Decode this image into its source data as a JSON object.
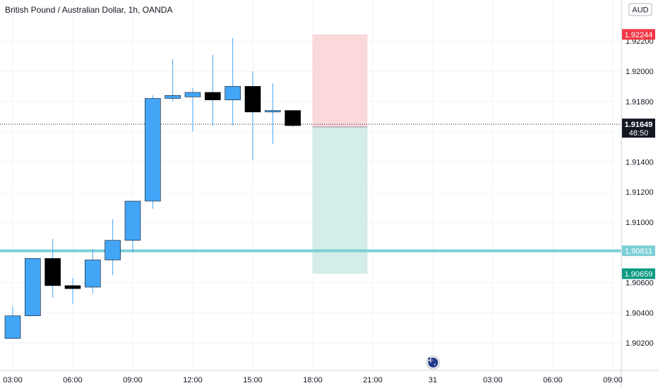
{
  "chart_data": {
    "type": "candlestick",
    "title": "British Pound / Australian Dollar, 1h, OANDA",
    "currency": "AUD",
    "ylim": [
      1.9,
      1.9252
    ],
    "y_ticks": [
      "1.90200",
      "1.90400",
      "1.90600",
      "1.90800",
      "1.91000",
      "1.91200",
      "1.91400",
      "1.91600",
      "1.91800",
      "1.92000",
      "1.92200"
    ],
    "x_ticks": [
      {
        "label": "03:00",
        "hour": 0
      },
      {
        "label": "06:00",
        "hour": 3
      },
      {
        "label": "09:00",
        "hour": 6
      },
      {
        "label": "12:00",
        "hour": 9
      },
      {
        "label": "15:00",
        "hour": 12
      },
      {
        "label": "18:00",
        "hour": 15
      },
      {
        "label": "21:00",
        "hour": 18
      },
      {
        "label": "31",
        "hour": 21
      },
      {
        "label": "03:00",
        "hour": 24
      },
      {
        "label": "06:00",
        "hour": 27
      },
      {
        "label": "09:00",
        "hour": 30
      }
    ],
    "candles": [
      {
        "hour": 0,
        "open": 1.9023,
        "high": 1.9044,
        "low": 1.9023,
        "close": 1.9038
      },
      {
        "hour": 1,
        "open": 1.9038,
        "high": 1.9076,
        "low": 1.9038,
        "close": 1.9076
      },
      {
        "hour": 2,
        "open": 1.9076,
        "high": 1.9089,
        "low": 1.905,
        "close": 1.9058
      },
      {
        "hour": 3,
        "open": 1.9058,
        "high": 1.9063,
        "low": 1.9046,
        "close": 1.9056
      },
      {
        "hour": 4,
        "open": 1.9057,
        "high": 1.9082,
        "low": 1.9053,
        "close": 1.9075
      },
      {
        "hour": 5,
        "open": 1.9075,
        "high": 1.9102,
        "low": 1.9065,
        "close": 1.9088
      },
      {
        "hour": 6,
        "open": 1.9088,
        "high": 1.9114,
        "low": 1.908,
        "close": 1.9114
      },
      {
        "hour": 7,
        "open": 1.9114,
        "high": 1.9184,
        "low": 1.9109,
        "close": 1.9182
      },
      {
        "hour": 8,
        "open": 1.9182,
        "high": 1.9208,
        "low": 1.918,
        "close": 1.9184
      },
      {
        "hour": 9,
        "open": 1.9183,
        "high": 1.9189,
        "low": 1.916,
        "close": 1.9186
      },
      {
        "hour": 10,
        "open": 1.9186,
        "high": 1.9211,
        "low": 1.9164,
        "close": 1.9181
      },
      {
        "hour": 11,
        "open": 1.9181,
        "high": 1.9222,
        "low": 1.9164,
        "close": 1.919
      },
      {
        "hour": 12,
        "open": 1.919,
        "high": 1.92,
        "low": 1.9141,
        "close": 1.9173
      },
      {
        "hour": 13,
        "open": 1.9173,
        "high": 1.9192,
        "low": 1.9152,
        "close": 1.9174
      },
      {
        "hour": 14,
        "open": 1.9174,
        "high": 1.9174,
        "low": 1.9163,
        "close": 1.9164
      }
    ],
    "up_color": "#42a5f5",
    "down_color": "#000000",
    "current_price": {
      "label": "1.91649",
      "value": 1.91649,
      "countdown": "48:50",
      "color": "#131722"
    },
    "horizontal_line": {
      "label": "1.90811",
      "value": 1.90811,
      "color": "#7dcfd6"
    },
    "position": {
      "start_hour": 15,
      "end_hour": 18,
      "entry": {
        "label": "1.91631",
        "value": 1.91631,
        "color": "#787b86"
      },
      "stop": {
        "label": "1.92244",
        "value": 1.92244,
        "color": "#f23645"
      },
      "target": {
        "label": "1.90659",
        "value": 1.90659,
        "color": "#089981"
      },
      "risk_fill": "#fbd8da",
      "reward_fill": "#d3ede9"
    },
    "event_marker": {
      "hour": 21,
      "region": "AU"
    },
    "grid": true
  }
}
